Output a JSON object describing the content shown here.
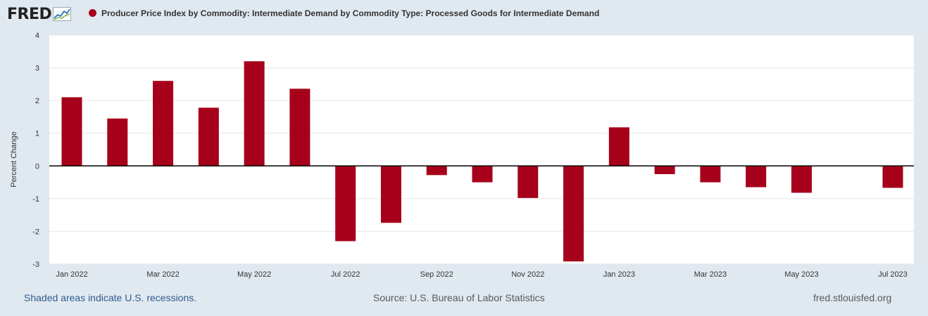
{
  "header": {
    "logo_text": "FRED",
    "title": "Producer Price Index by Commodity: Intermediate Demand by Commodity Type: Processed Goods for Intermediate Demand"
  },
  "footer": {
    "recession_note": "Shaded areas indicate U.S. recessions.",
    "source": "Source: U.S. Bureau of Labor Statistics",
    "site": "fred.stlouisfed.org"
  },
  "colors": {
    "bar": "#a6001a",
    "plot_bg": "#ffffff",
    "page_bg": "#e1e9f0",
    "grid": "#e6e6e6"
  },
  "chart_data": {
    "type": "bar",
    "title": "Producer Price Index by Commodity: Intermediate Demand by Commodity Type: Processed Goods for Intermediate Demand",
    "ylabel": "Percent Change",
    "xlabel": "",
    "ylim": [
      -3,
      4
    ],
    "yticks": [
      4,
      3,
      2,
      1,
      0,
      -1,
      -2,
      -3
    ],
    "grid": true,
    "categories": [
      "Jan 2022",
      "Feb 2022",
      "Mar 2022",
      "Apr 2022",
      "May 2022",
      "Jun 2022",
      "Jul 2022",
      "Aug 2022",
      "Sep 2022",
      "Oct 2022",
      "Nov 2022",
      "Dec 2022",
      "Jan 2023",
      "Feb 2023",
      "Mar 2023",
      "Apr 2023",
      "May 2023",
      "Jun 2023",
      "Jul 2023"
    ],
    "xtick_labels": [
      "Jan 2022",
      "Mar 2022",
      "May 2022",
      "Jul 2022",
      "Sep 2022",
      "Nov 2022",
      "Jan 2023",
      "Mar 2023",
      "May 2023",
      "Jul 2023"
    ],
    "xtick_indices": [
      0,
      2,
      4,
      6,
      8,
      10,
      12,
      14,
      16,
      18
    ],
    "series": [
      {
        "name": "Producer Price Index by Commodity: Intermediate Demand by Commodity Type: Processed Goods for Intermediate Demand",
        "values": [
          2.1,
          1.45,
          2.6,
          1.78,
          3.2,
          2.36,
          -2.3,
          -1.74,
          -0.28,
          -0.5,
          -0.98,
          -2.92,
          1.18,
          -0.25,
          -0.5,
          -0.65,
          -0.82,
          null,
          -0.67
        ]
      }
    ]
  }
}
